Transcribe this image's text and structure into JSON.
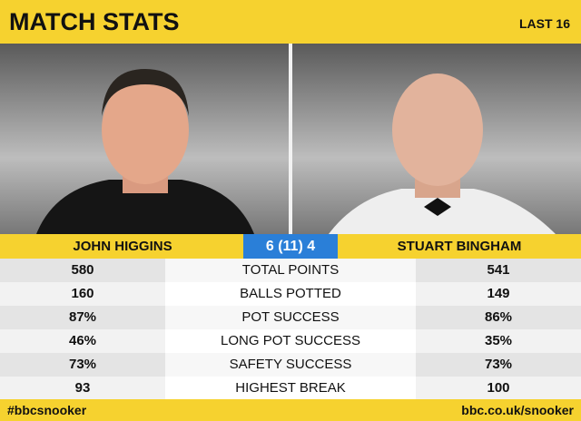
{
  "header": {
    "title": "MATCH STATS",
    "round": "LAST 16"
  },
  "players": {
    "left": "JOHN HIGGINS",
    "score": "6 (11) 4",
    "right": "STUART BINGHAM"
  },
  "table": {
    "rows": [
      [
        "580",
        "TOTAL POINTS",
        "541"
      ],
      [
        "160",
        "BALLS POTTED",
        "149"
      ],
      [
        "87%",
        "POT SUCCESS",
        "86%"
      ],
      [
        "46%",
        "LONG POT SUCCESS",
        "35%"
      ],
      [
        "73%",
        "SAFETY SUCCESS",
        "73%"
      ],
      [
        "93",
        "HIGHEST BREAK",
        "100"
      ]
    ]
  },
  "footer": {
    "left": "#bbcsnooker",
    "right": "bbc.co.uk/snooker"
  }
}
